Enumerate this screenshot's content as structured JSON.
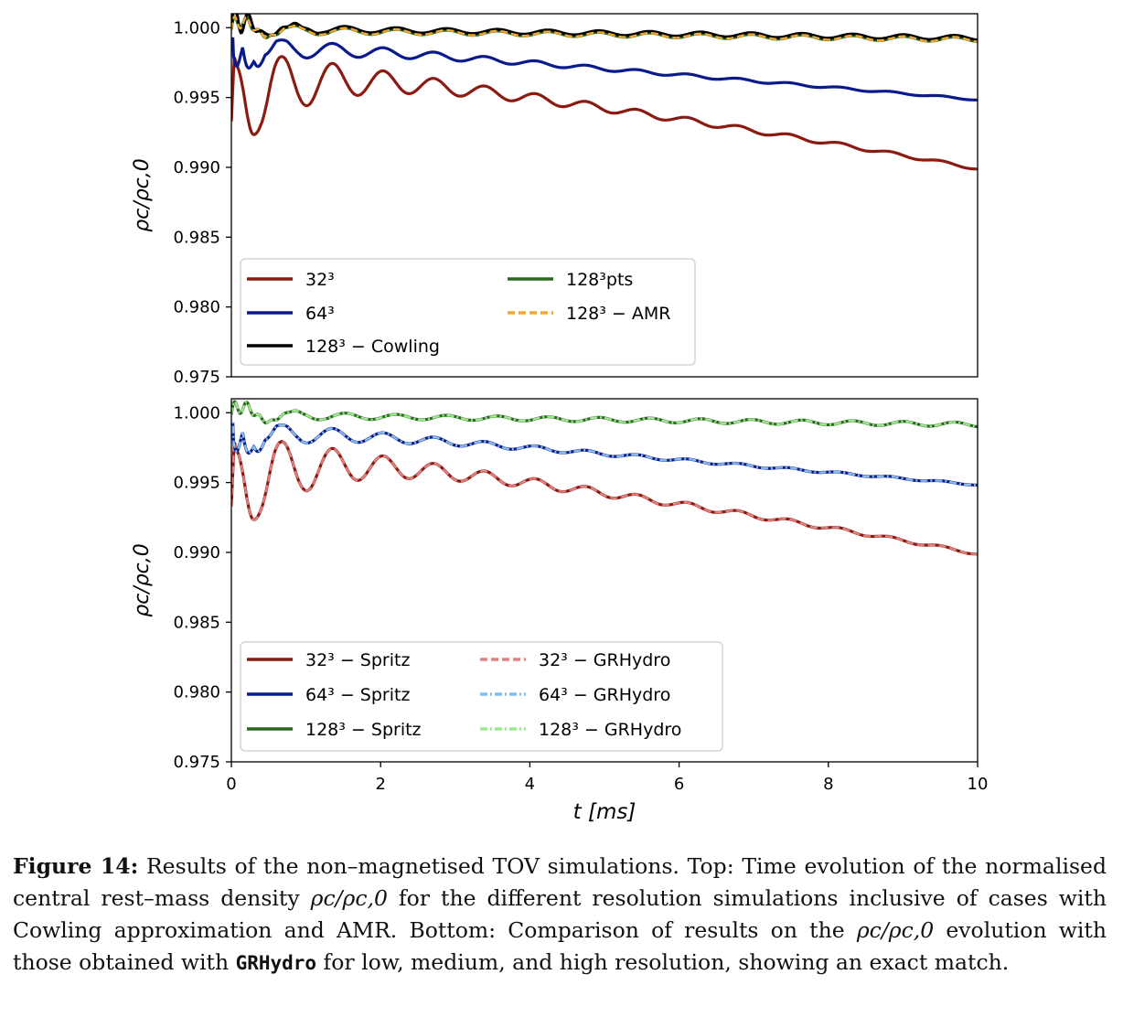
{
  "chart_data": [
    {
      "type": "line",
      "ylabel": "ρc/ρc,0",
      "xlim": [
        0,
        10
      ],
      "ylim": [
        0.975,
        1.001
      ],
      "yticks": [
        "0.975",
        "0.980",
        "0.985",
        "0.990",
        "0.995",
        "1.000"
      ],
      "legend_location": "lower-left",
      "legend_columns": 2,
      "series": [
        {
          "name": "32³",
          "color": "#8b1a10",
          "style": "solid",
          "family": "low"
        },
        {
          "name": "64³",
          "color": "#0a1a8c",
          "style": "solid",
          "family": "mid"
        },
        {
          "name": "128³ − Cowling",
          "color": "#000000",
          "style": "solid",
          "family": "cowling"
        },
        {
          "name": "128³pts",
          "color": "#2a6a1e",
          "style": "solid",
          "family": "high"
        },
        {
          "name": "128³ − AMR",
          "color": "#f0a830",
          "style": "dashed",
          "family": "amr"
        }
      ]
    },
    {
      "type": "line",
      "xlabel": "t [ms]",
      "ylabel": "ρc/ρc,0",
      "xlim": [
        0,
        10
      ],
      "ylim": [
        0.975,
        1.001
      ],
      "xticks": [
        "0",
        "2",
        "4",
        "6",
        "8",
        "10"
      ],
      "yticks": [
        "0.975",
        "0.980",
        "0.985",
        "0.990",
        "0.995",
        "1.000"
      ],
      "legend_location": "lower-left",
      "legend_columns": 2,
      "series": [
        {
          "name": "32³ − Spritz",
          "color": "#8b1a10",
          "style": "solid",
          "family": "low"
        },
        {
          "name": "64³ − Spritz",
          "color": "#0a1a8c",
          "style": "solid",
          "family": "mid"
        },
        {
          "name": "128³ − Spritz",
          "color": "#2a6a1e",
          "style": "solid",
          "family": "high"
        },
        {
          "name": "32³ − GRHydro",
          "color": "#e08080",
          "style": "dashed",
          "family": "low"
        },
        {
          "name": "64³ − GRHydro",
          "color": "#88bde8",
          "style": "dashdot",
          "family": "mid"
        },
        {
          "name": "128³ − GRHydro",
          "color": "#a0e890",
          "style": "dashdot",
          "family": "high"
        }
      ]
    }
  ],
  "caption": {
    "label": "Figure 14:",
    "part1": " Results of the non–magnetised TOV simulations. Top: Time evolution of the normalised central rest–mass density ",
    "rho": "ρc/ρc,0",
    "part2": " for the different resolution simulations inclusive of cases with Cowling approximation and AMR. Bottom: Comparison of results on the ",
    "part3": " evolution with those obtained with ",
    "code": "GRHydro",
    "part4": " for low, medium, and high resolution, showing an exact match."
  }
}
